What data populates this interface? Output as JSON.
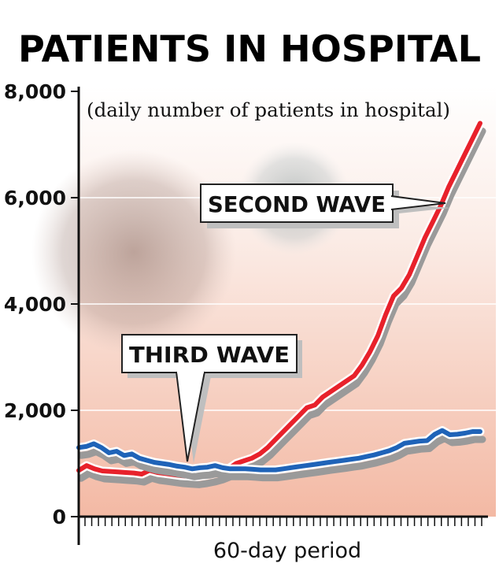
{
  "chart_data": {
    "type": "line",
    "title": "PATIENTS IN HOSPITAL",
    "subtitle": "(daily number of patients in hospital)",
    "xlabel": "60-day period",
    "ylabel": "",
    "ylim": [
      0,
      8000
    ],
    "yticks": [
      0,
      2000,
      4000,
      6000,
      8000
    ],
    "ytick_labels": [
      "0",
      "2,000",
      "4,000",
      "6,000",
      "8,000"
    ],
    "x_count": 60,
    "grid": true,
    "legend": "none",
    "series": [
      {
        "name": "SECOND WAVE",
        "color": "#e8212b",
        "values": [
          870,
          960,
          900,
          860,
          850,
          840,
          830,
          820,
          800,
          870,
          830,
          810,
          790,
          770,
          760,
          750,
          770,
          800,
          840,
          900,
          1000,
          1050,
          1100,
          1180,
          1300,
          1450,
          1600,
          1750,
          1900,
          2050,
          2100,
          2250,
          2350,
          2450,
          2550,
          2650,
          2850,
          3100,
          3400,
          3800,
          4150,
          4300,
          4550,
          4900,
          5250,
          5550,
          5850,
          6200,
          6500,
          6800,
          7100,
          7400
        ]
      },
      {
        "name": "THIRD WAVE",
        "color": "#1f63b8",
        "values": [
          1300,
          1320,
          1370,
          1300,
          1200,
          1230,
          1150,
          1180,
          1100,
          1060,
          1020,
          1000,
          980,
          950,
          930,
          900,
          920,
          930,
          960,
          920,
          900,
          900,
          900,
          890,
          880,
          880,
          880,
          900,
          920,
          940,
          960,
          980,
          1000,
          1020,
          1040,
          1060,
          1080,
          1100,
          1130,
          1160,
          1200,
          1240,
          1300,
          1380,
          1400,
          1420,
          1430,
          1550,
          1620,
          1540,
          1550,
          1570,
          1600,
          1600
        ]
      }
    ],
    "annotations": [
      {
        "text": "SECOND WAVE",
        "points_to": "SECOND WAVE"
      },
      {
        "text": "THIRD WAVE",
        "points_to": "THIRD WAVE"
      }
    ]
  }
}
